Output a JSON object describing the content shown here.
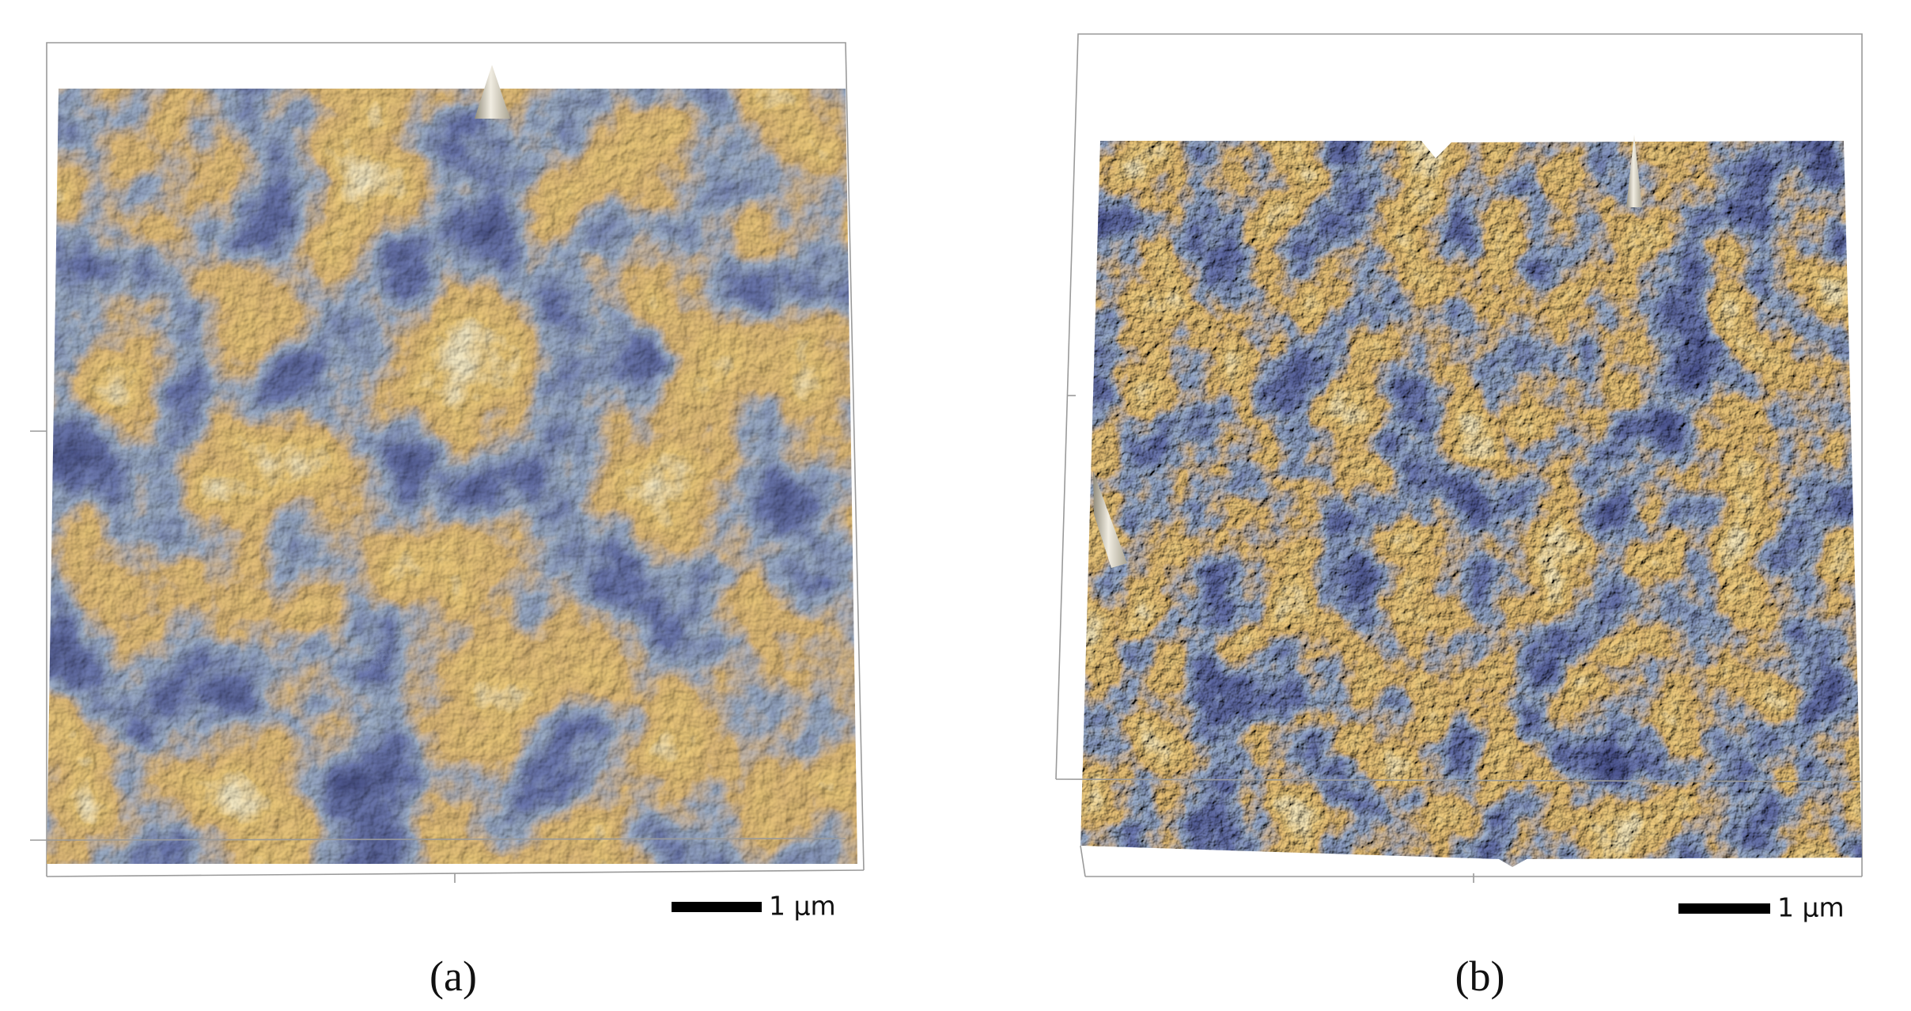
{
  "panels": [
    {
      "scale_bar": "1 µm",
      "label": "(a)"
    },
    {
      "scale_bar": "1 µm",
      "label": "(b)"
    }
  ]
}
